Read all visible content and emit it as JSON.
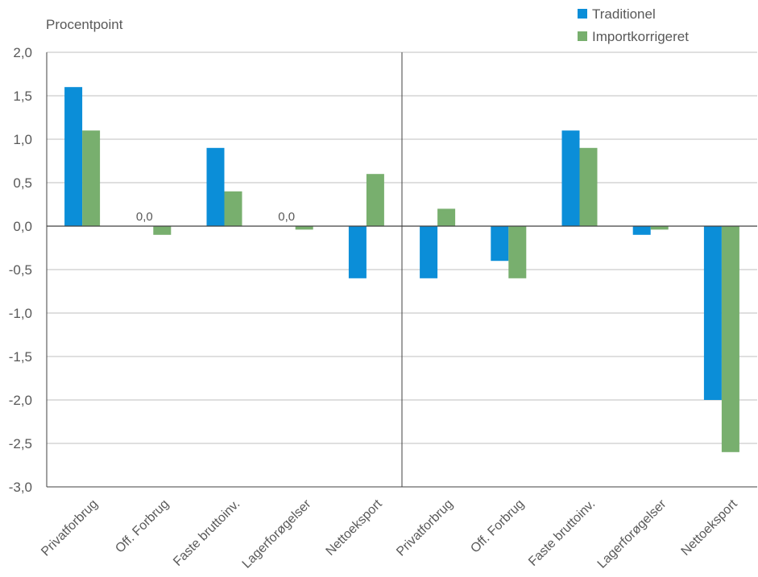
{
  "chart_data": {
    "type": "bar",
    "ylabel": "Procentpoint",
    "ylim": [
      -3.0,
      2.0
    ],
    "yticks": [
      "2,0",
      "1,5",
      "1,0",
      "0,5",
      "0,0",
      "-0,5",
      "-1,0",
      "-1,5",
      "-2,0",
      "-2,5",
      "-3,0"
    ],
    "categories": [
      "Privatforbrug",
      "Off. Forbrug",
      "Faste bruttoinv.",
      "Lagerforøgelser",
      "Nettoeksport",
      "Privatforbrug",
      "Off. Forbrug",
      "Faste bruttoinv.",
      "Lagerforøgelser",
      "Nettoeksport"
    ],
    "series": [
      {
        "name": "Traditionel",
        "color": "#0B8ED8",
        "values": [
          1.6,
          0.0,
          0.9,
          0.0,
          -0.6,
          -0.6,
          -0.4,
          1.1,
          -0.1,
          -2.0
        ]
      },
      {
        "name": "Importkorrigeret",
        "color": "#78AF6E",
        "values": [
          1.1,
          -0.1,
          0.4,
          -0.04,
          0.6,
          0.2,
          -0.6,
          0.9,
          -0.04,
          -2.6
        ]
      }
    ],
    "data_labels": [
      {
        "category_index": 1,
        "series_index": 0,
        "text": "0,0"
      },
      {
        "category_index": 3,
        "series_index": 0,
        "text": "0,0"
      }
    ],
    "grid": true,
    "legend_position": "top-right"
  }
}
